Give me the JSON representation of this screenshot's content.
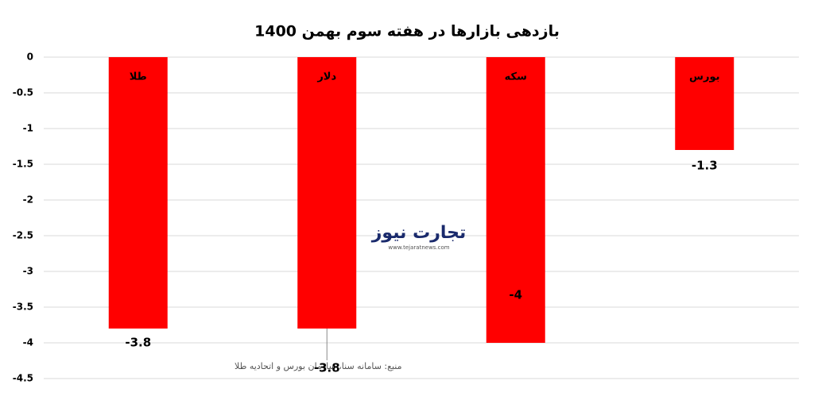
{
  "chart_data": {
    "type": "bar",
    "title": "بازدهی بازارها در هفته سوم بهمن 1400",
    "categories": [
      "طلا",
      "دلار",
      "سکه",
      "بورس"
    ],
    "values": [
      -3.8,
      -3.8,
      -4,
      -1.3
    ],
    "color": "#ff0000",
    "ylim": [
      -4.5,
      0
    ],
    "yticks": [
      0,
      -0.5,
      -1,
      -1.5,
      -2,
      -2.5,
      -3,
      -3.5,
      -4,
      -4.5
    ],
    "grid": true,
    "watermark": {
      "name": "تجارت نیوز",
      "url": "www.tejaratnews.com"
    },
    "source": "منبع: سامانه سنا، سازمان بورس و اتحادیه طلا"
  }
}
